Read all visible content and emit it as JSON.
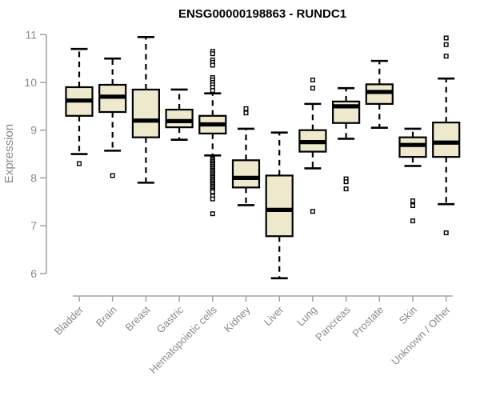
{
  "title": "ENSG00000198863 - RUNDC1",
  "colors": {
    "box_fill": "#EEE8CD",
    "box_stroke": "#000000",
    "median_color": "#000000",
    "axis_color": "#A6A6A6",
    "label_color": "#8A8A8A",
    "title_color": "#000000",
    "background": "#FFFFFF",
    "outlier_fill": "#FFFFFF"
  },
  "chart_data": {
    "type": "boxplot",
    "title": "ENSG00000198863 - RUNDC1",
    "xlabel": "",
    "ylabel": "Expression",
    "ylim": [
      6,
      11
    ],
    "yticks": [
      6,
      7,
      8,
      9,
      10,
      11
    ],
    "grid": false,
    "legend": "none",
    "categories": [
      "Bladder",
      "Brain",
      "Breast",
      "Gastric",
      "Hematopoietic cells",
      "Kidney",
      "Liver",
      "Lung",
      "Pancreas",
      "Prostate",
      "Skin",
      "Unknown / Other"
    ],
    "series": [
      {
        "category": "Bladder",
        "whisker_low": 8.5,
        "q1": 9.3,
        "median": 9.62,
        "q3": 9.9,
        "whisker_high": 10.7,
        "outliers": [
          8.3
        ]
      },
      {
        "category": "Brain",
        "whisker_low": 8.57,
        "q1": 9.38,
        "median": 9.7,
        "q3": 9.95,
        "whisker_high": 10.5,
        "outliers": [
          8.05
        ]
      },
      {
        "category": "Breast",
        "whisker_low": 7.9,
        "q1": 8.85,
        "median": 9.2,
        "q3": 9.85,
        "whisker_high": 10.95,
        "outliers": []
      },
      {
        "category": "Gastric",
        "whisker_low": 8.8,
        "q1": 9.06,
        "median": 9.19,
        "q3": 9.43,
        "whisker_high": 9.85,
        "outliers": []
      },
      {
        "category": "Hematopoietic cells",
        "whisker_low": 8.47,
        "q1": 8.93,
        "median": 9.12,
        "q3": 9.3,
        "whisker_high": 9.77,
        "outliers": [
          10.65,
          10.6,
          10.47,
          10.42,
          10.36,
          10.1,
          10.05,
          10.0,
          9.95,
          9.9,
          9.83,
          8.4,
          8.37,
          8.34,
          8.31,
          8.28,
          8.25,
          8.22,
          8.19,
          8.16,
          8.13,
          8.1,
          8.07,
          8.04,
          8.01,
          7.98,
          7.95,
          7.92,
          7.89,
          7.86,
          7.83,
          7.8,
          7.77,
          7.74,
          7.71,
          7.62,
          7.56,
          7.25
        ]
      },
      {
        "category": "Kidney",
        "whisker_low": 7.43,
        "q1": 7.8,
        "median": 8.0,
        "q3": 8.37,
        "whisker_high": 9.03,
        "outliers": [
          9.45,
          9.36
        ]
      },
      {
        "category": "Liver",
        "whisker_low": 5.9,
        "q1": 6.78,
        "median": 7.33,
        "q3": 8.05,
        "whisker_high": 8.95,
        "outliers": []
      },
      {
        "category": "Lung",
        "whisker_low": 8.2,
        "q1": 8.55,
        "median": 8.75,
        "q3": 9.0,
        "whisker_high": 9.55,
        "outliers": [
          10.05,
          9.88,
          7.3
        ]
      },
      {
        "category": "Pancreas",
        "whisker_low": 8.82,
        "q1": 9.15,
        "median": 9.5,
        "q3": 9.6,
        "whisker_high": 9.88,
        "outliers": [
          7.98,
          7.92,
          7.77
        ]
      },
      {
        "category": "Prostate",
        "whisker_low": 9.05,
        "q1": 9.55,
        "median": 9.8,
        "q3": 9.96,
        "whisker_high": 10.45,
        "outliers": []
      },
      {
        "category": "Skin",
        "whisker_low": 8.25,
        "q1": 8.44,
        "median": 8.69,
        "q3": 8.85,
        "whisker_high": 9.03,
        "outliers": [
          7.52,
          7.42,
          7.1
        ]
      },
      {
        "category": "Unknown / Other",
        "whisker_low": 7.45,
        "q1": 8.44,
        "median": 8.74,
        "q3": 9.16,
        "whisker_high": 10.08,
        "outliers": [
          10.93,
          10.79,
          10.55,
          6.85
        ]
      }
    ]
  }
}
